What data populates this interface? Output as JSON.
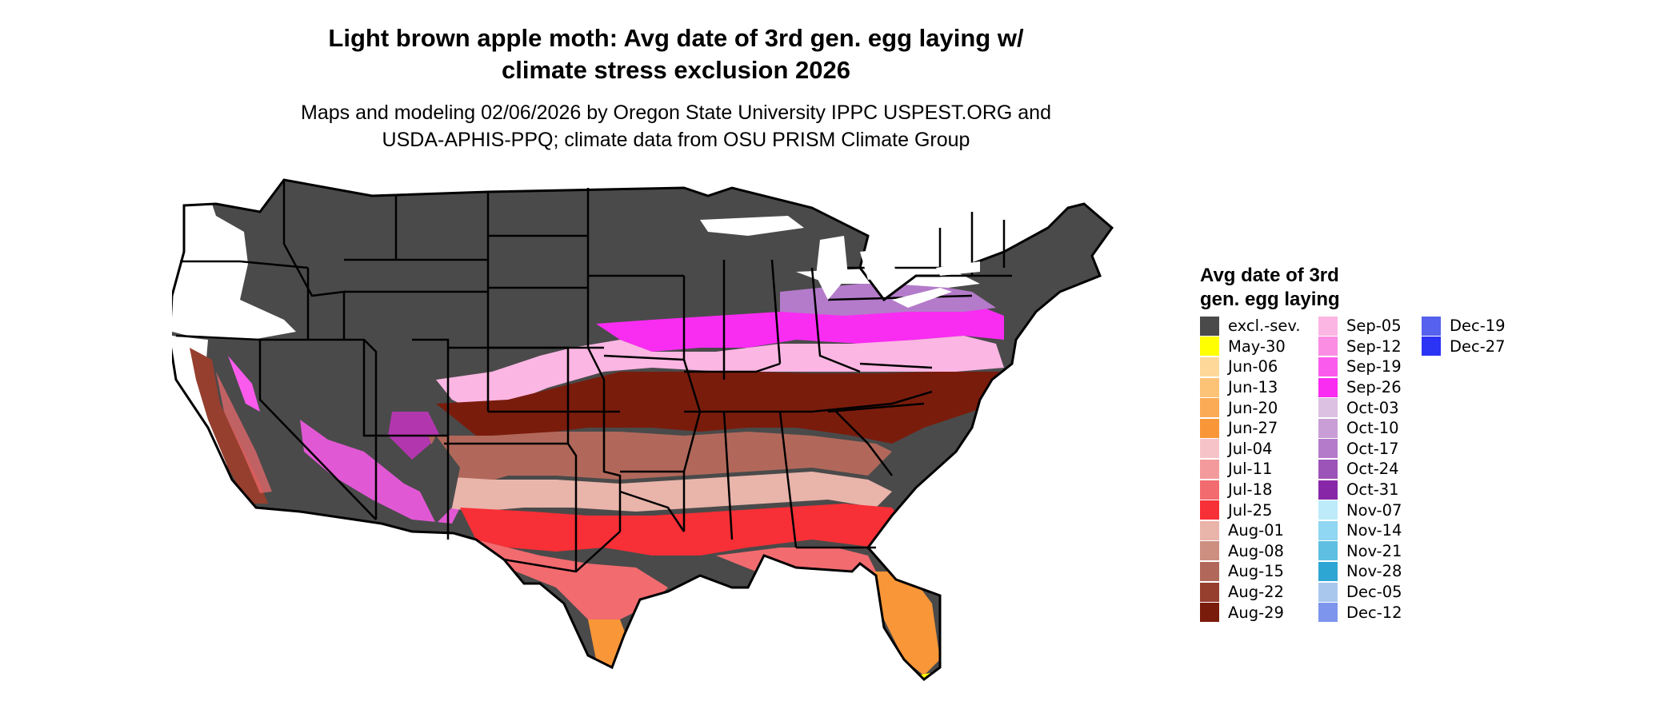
{
  "title_lines": [
    "Light brown apple moth: Avg date of 3rd gen. egg laying w/",
    "climate stress exclusion 2026"
  ],
  "subtitle_lines": [
    "Maps and modeling 02/06/2026 by Oregon State University IPPC USPEST.ORG and",
    "USDA-APHIS-PPQ; climate data from OSU PRISM Climate Group"
  ],
  "legend": {
    "title_lines": [
      "Avg date of 3rd",
      "gen. egg laying"
    ],
    "items": [
      {
        "label": "excl.-sev.",
        "color": "#4a4a4a"
      },
      {
        "label": "May-30",
        "color": "#ffff00"
      },
      {
        "label": "Jun-06",
        "color": "#fdd899"
      },
      {
        "label": "Jun-13",
        "color": "#fcc276"
      },
      {
        "label": "Jun-20",
        "color": "#fbab55"
      },
      {
        "label": "Jun-27",
        "color": "#f99638"
      },
      {
        "label": "Jul-04",
        "color": "#f6c4c8"
      },
      {
        "label": "Jul-11",
        "color": "#f39a9c"
      },
      {
        "label": "Jul-18",
        "color": "#f26b6f"
      },
      {
        "label": "Jul-25",
        "color": "#f72f36"
      },
      {
        "label": "Aug-01",
        "color": "#e9b4aa"
      },
      {
        "label": "Aug-08",
        "color": "#cc8f80"
      },
      {
        "label": "Aug-15",
        "color": "#b1685a"
      },
      {
        "label": "Aug-22",
        "color": "#963f2f"
      },
      {
        "label": "Aug-29",
        "color": "#7a1c0c"
      },
      {
        "label": "Sep-05",
        "color": "#fbb6e3"
      },
      {
        "label": "Sep-12",
        "color": "#fb8de3"
      },
      {
        "label": "Sep-19",
        "color": "#fb5bec"
      },
      {
        "label": "Sep-26",
        "color": "#f92cf2"
      },
      {
        "label": "Oct-03",
        "color": "#dcc1e3"
      },
      {
        "label": "Oct-10",
        "color": "#c99ed6"
      },
      {
        "label": "Oct-17",
        "color": "#b47bca"
      },
      {
        "label": "Oct-24",
        "color": "#9d54b9"
      },
      {
        "label": "Oct-31",
        "color": "#8826a8"
      },
      {
        "label": "Nov-07",
        "color": "#bdebfa"
      },
      {
        "label": "Nov-14",
        "color": "#8fd7f2"
      },
      {
        "label": "Nov-21",
        "color": "#5ebfe2"
      },
      {
        "label": "Nov-28",
        "color": "#2ea6d3"
      },
      {
        "label": "Dec-05",
        "color": "#a9c7ed"
      },
      {
        "label": "Dec-12",
        "color": "#7d95ec"
      },
      {
        "label": "Dec-19",
        "color": "#5661ee"
      },
      {
        "label": "Dec-27",
        "color": "#2b33f5"
      }
    ]
  }
}
